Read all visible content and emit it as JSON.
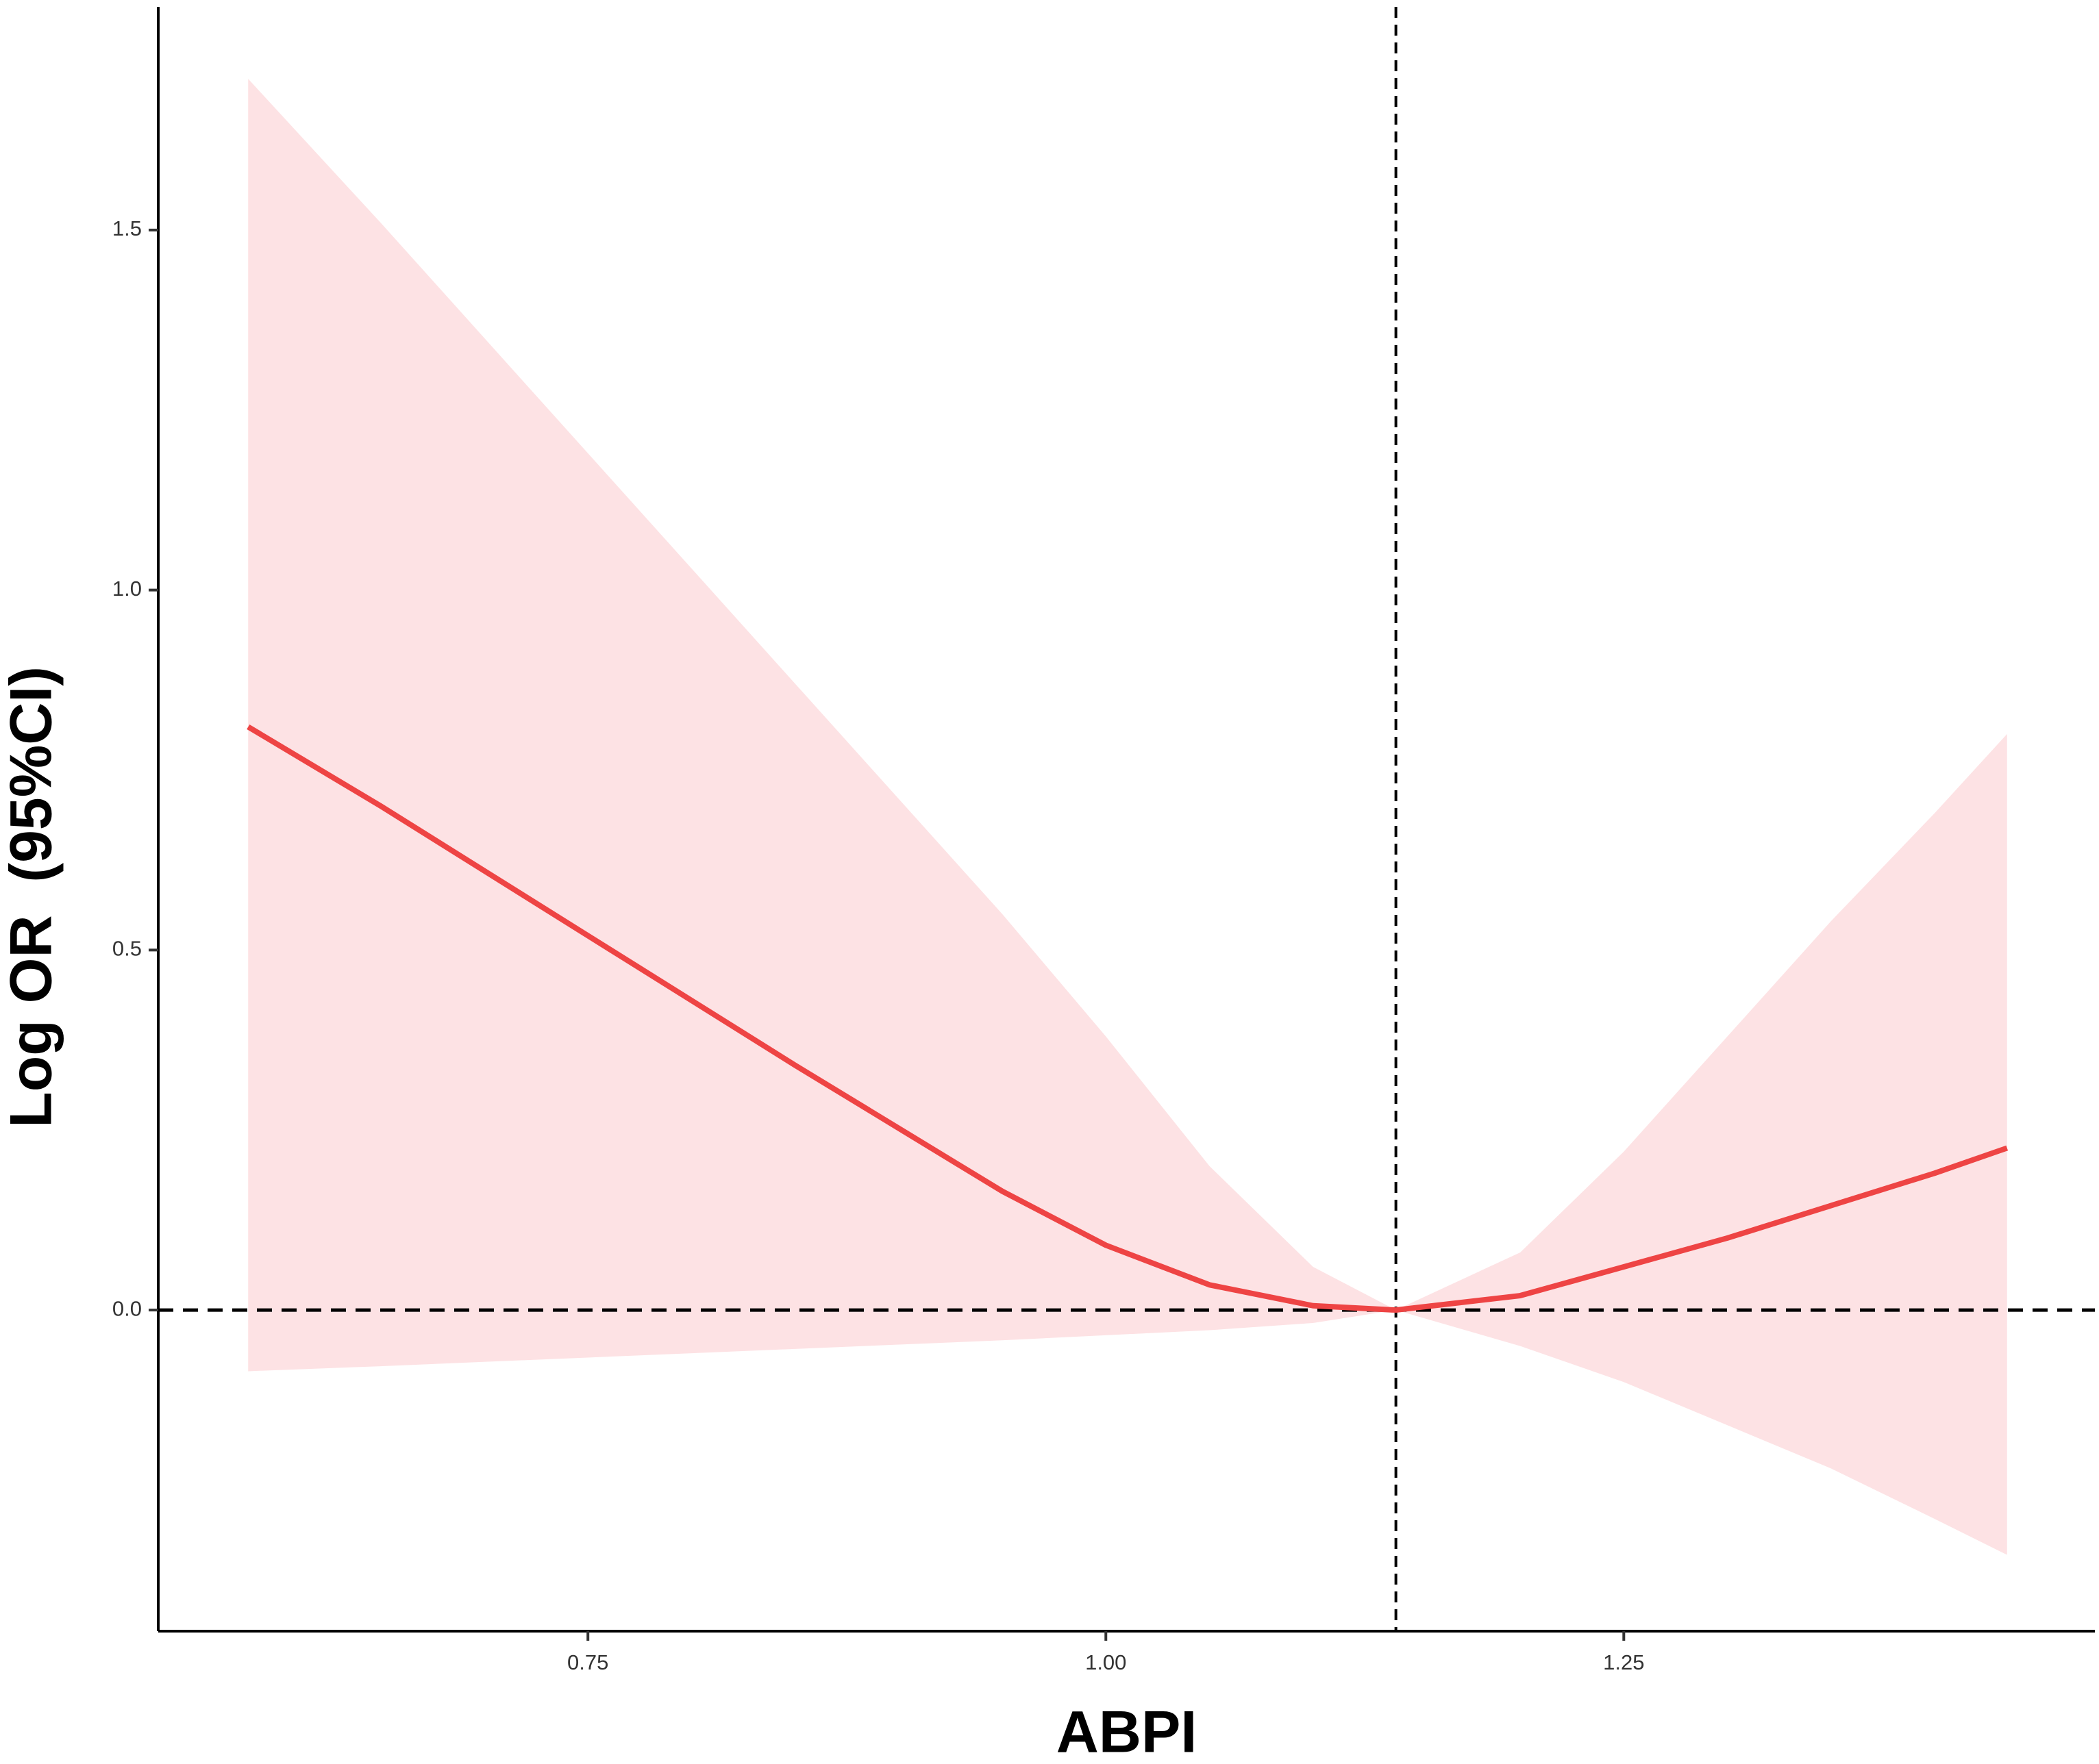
{
  "chart_data": {
    "type": "line",
    "x_label": "ABPI",
    "y_label": "Log OR  (95%CI)",
    "x": [
      0.586,
      0.65,
      0.75,
      0.85,
      0.95,
      1.0,
      1.05,
      1.1,
      1.14,
      1.2,
      1.25,
      1.3,
      1.35,
      1.4,
      1.435
    ],
    "values": [
      0.81,
      0.7,
      0.52,
      0.34,
      0.165,
      0.09,
      0.035,
      0.006,
      0,
      0.02,
      0.06,
      0.1,
      0.145,
      0.19,
      0.225
    ],
    "ci_upper": [
      1.71,
      1.51,
      1.19,
      0.87,
      0.55,
      0.38,
      0.2,
      0.06,
      0,
      0.08,
      0.22,
      0.38,
      0.54,
      0.69,
      0.8
    ],
    "ci_lower": [
      -0.085,
      -0.078,
      -0.066,
      -0.054,
      -0.042,
      -0.035,
      -0.028,
      -0.018,
      0,
      -0.05,
      -0.1,
      -0.16,
      -0.22,
      -0.29,
      -0.34
    ],
    "color": "#ee4444",
    "band_color": "#fde2e4",
    "xlim": [
      0.5426,
      1.4774
    ],
    "ylim": [
      -0.446,
      1.81
    ],
    "xticks": [
      {
        "value": 0.75,
        "label": "0.75"
      },
      {
        "value": 1.0,
        "label": "1.00"
      },
      {
        "value": 1.25,
        "label": "1.25"
      }
    ],
    "yticks": [
      {
        "value": 0,
        "label": "0.0"
      },
      {
        "value": 0.5,
        "label": "0.5"
      },
      {
        "value": 1.0,
        "label": "1.0"
      },
      {
        "value": 1.5,
        "label": "1.5"
      }
    ],
    "hline": 0,
    "vline": 1.14
  }
}
